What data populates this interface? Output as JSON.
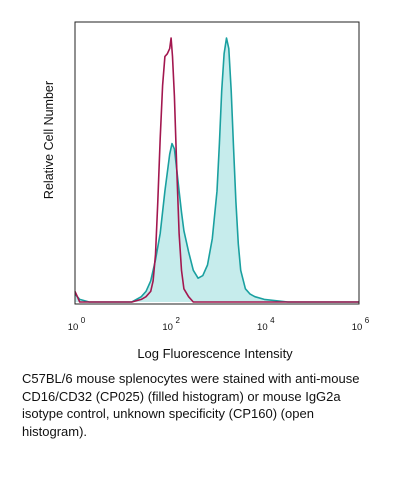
{
  "chart_data": {
    "type": "area",
    "title": "",
    "xlabel": "Log Fluorescence Intensity",
    "ylabel": "Relative Cell Number",
    "x_scale": "log",
    "xlim": [
      0,
      6
    ],
    "ylim": [
      0,
      1
    ],
    "ticks": [
      {
        "base": "10",
        "exp": "0",
        "value": 0
      },
      {
        "base": "10",
        "exp": "2",
        "value": 2
      },
      {
        "base": "10",
        "exp": "4",
        "value": 4
      },
      {
        "base": "10",
        "exp": "6",
        "value": 6
      }
    ],
    "series": [
      {
        "fill": "open",
        "color": "#a3174f",
        "x": [
          0.0,
          0.05,
          0.1,
          0.3,
          0.5,
          0.8,
          1.0,
          1.2,
          1.4,
          1.5,
          1.6,
          1.65,
          1.7,
          1.75,
          1.8,
          1.85,
          1.9,
          1.95,
          2.0,
          2.03,
          2.06,
          2.1,
          2.15,
          2.2,
          2.25,
          2.3,
          2.4,
          2.5,
          2.7,
          3.0,
          3.5,
          4.0,
          5.0,
          6.0
        ],
        "y": [
          0.04,
          0.02,
          0.0,
          0.0,
          0.0,
          0.0,
          0.0,
          0.0,
          0.01,
          0.02,
          0.04,
          0.08,
          0.18,
          0.38,
          0.62,
          0.82,
          0.93,
          0.94,
          0.96,
          1.0,
          0.93,
          0.78,
          0.5,
          0.26,
          0.12,
          0.05,
          0.02,
          0.0,
          0.0,
          0.0,
          0.0,
          0.0,
          0.0,
          0.0
        ]
      },
      {
        "fill": "filled",
        "color": "#1aa0a0",
        "fill_color": "#c6ecec",
        "x": [
          0.0,
          0.1,
          0.3,
          0.5,
          0.8,
          1.0,
          1.2,
          1.4,
          1.5,
          1.6,
          1.7,
          1.8,
          1.9,
          2.0,
          2.05,
          2.1,
          2.15,
          2.2,
          2.25,
          2.3,
          2.4,
          2.5,
          2.6,
          2.7,
          2.8,
          2.9,
          3.0,
          3.05,
          3.1,
          3.15,
          3.2,
          3.25,
          3.3,
          3.35,
          3.4,
          3.45,
          3.5,
          3.6,
          3.7,
          3.8,
          4.0,
          4.5,
          5.0,
          6.0
        ],
        "y": [
          0.03,
          0.01,
          0.0,
          0.0,
          0.0,
          0.0,
          0.0,
          0.02,
          0.04,
          0.08,
          0.16,
          0.26,
          0.42,
          0.56,
          0.6,
          0.58,
          0.5,
          0.42,
          0.34,
          0.27,
          0.19,
          0.12,
          0.09,
          0.1,
          0.14,
          0.24,
          0.42,
          0.6,
          0.8,
          0.94,
          1.0,
          0.96,
          0.8,
          0.58,
          0.38,
          0.22,
          0.12,
          0.05,
          0.03,
          0.02,
          0.01,
          0.0,
          0.0,
          0.0
        ]
      }
    ]
  },
  "caption": "C57BL/6 mouse splenocytes were stained with anti-mouse CD16/CD32 (CP025) (filled histogram) or mouse IgG2a isotype control, unknown specificity (CP160) (open histogram)."
}
